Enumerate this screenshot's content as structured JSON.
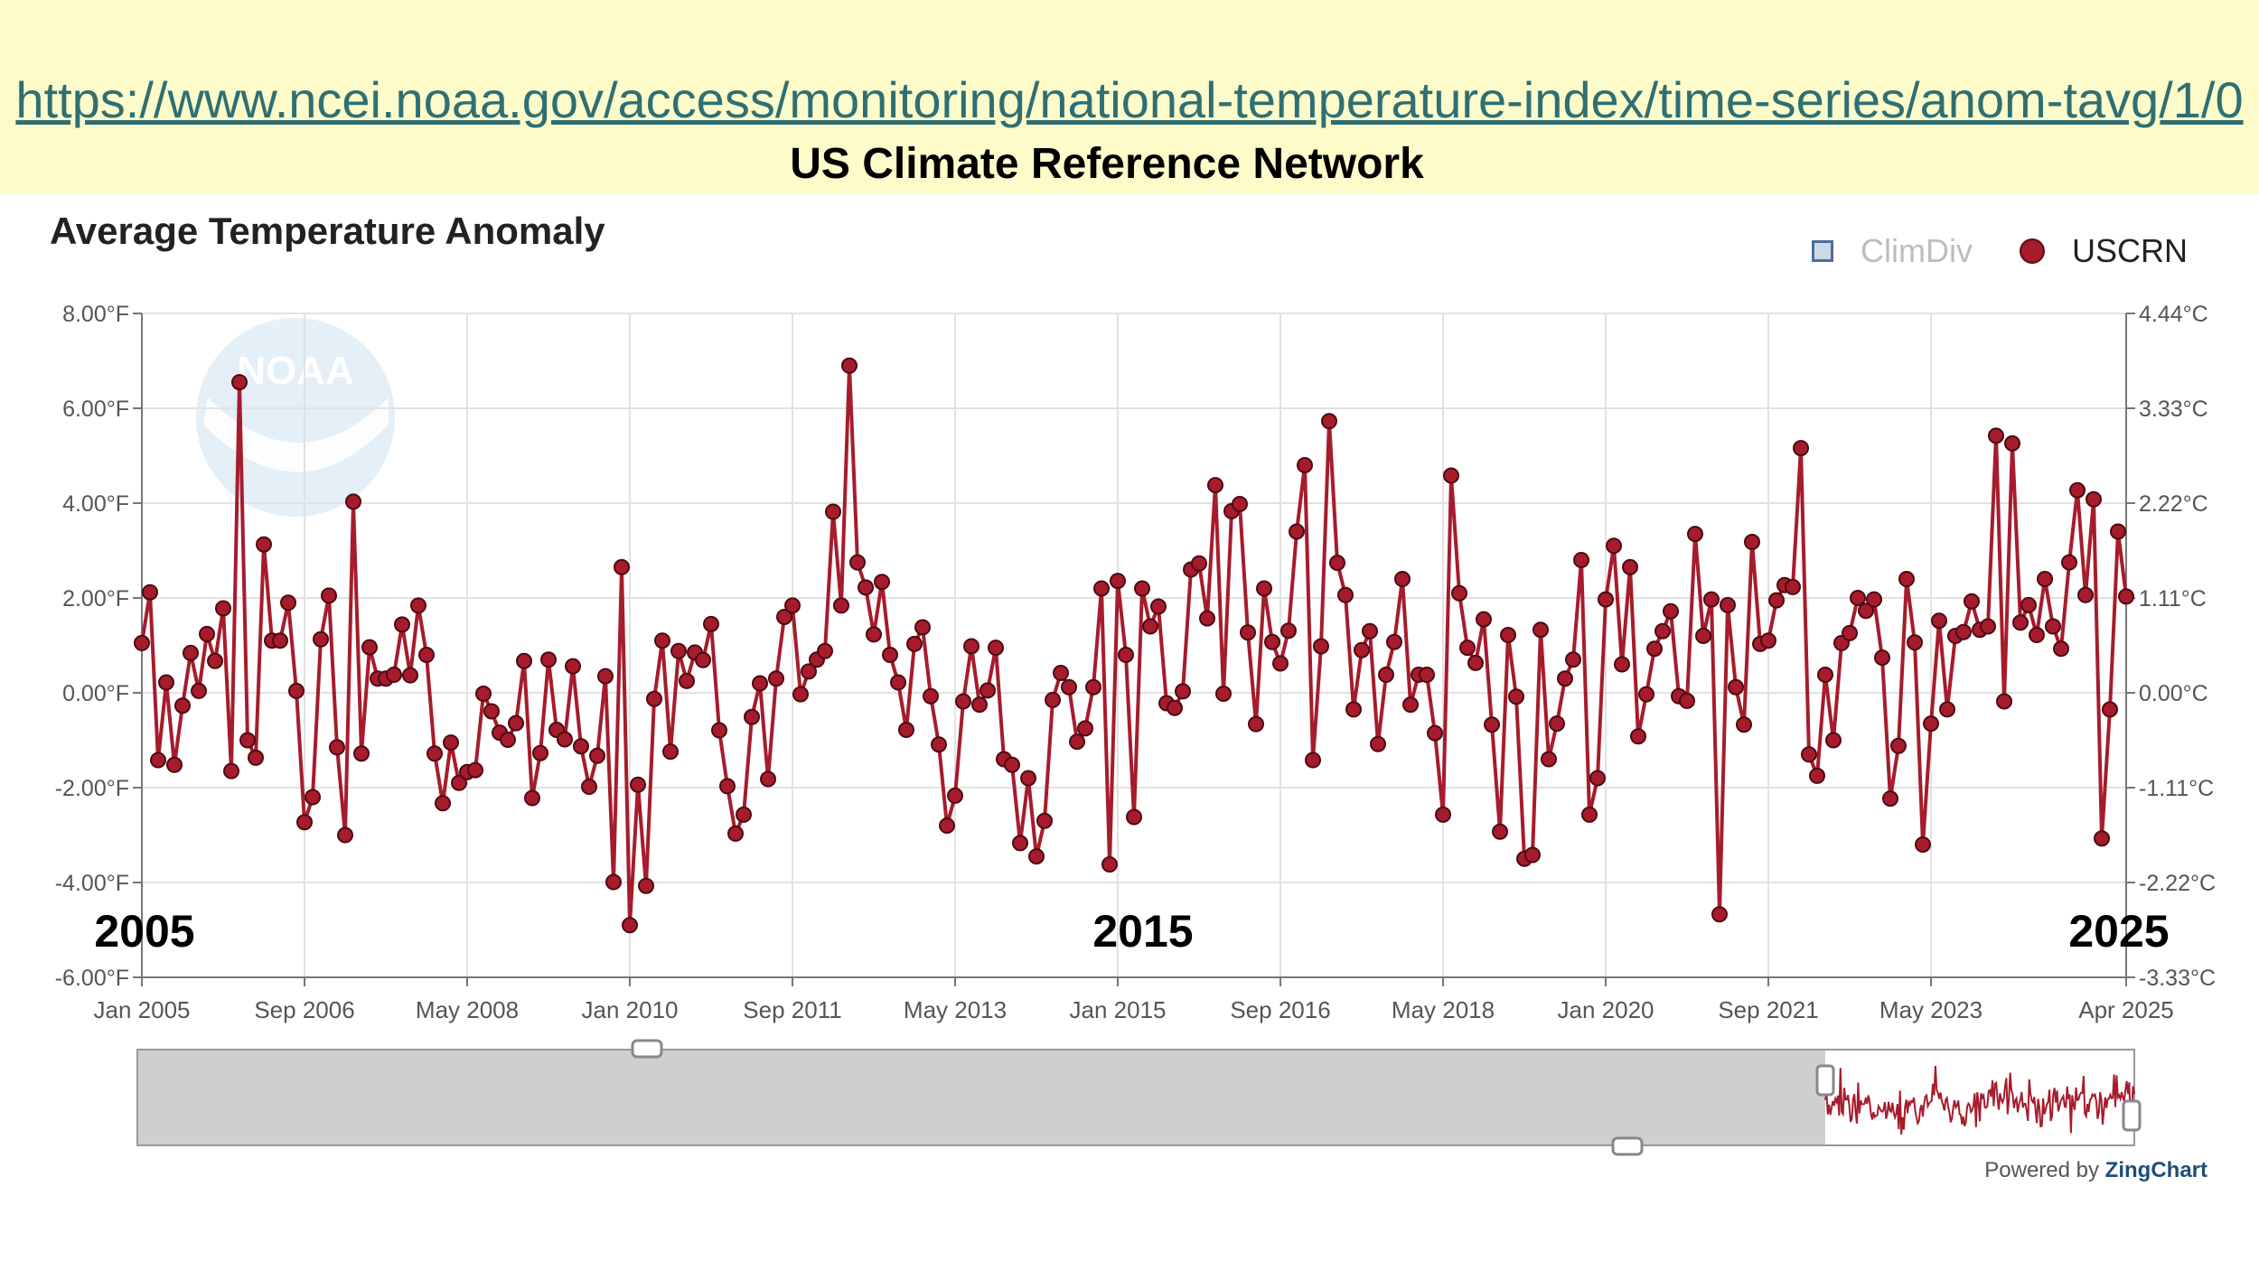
{
  "header": {
    "url": "https://www.ncei.noaa.gov/access/monitoring/national-temperature-index/time-series/anom-tavg/1/0",
    "subtitle": "US Climate Reference Network"
  },
  "watermark": {
    "text": "NOAA"
  },
  "colors": {
    "banner": "#fdfbc9",
    "series": "#a61c2c",
    "climdiv_fill": "#cbd9e8",
    "grid": "#e2e2e2",
    "navigator_fill": "#cfcfcf"
  },
  "footer": {
    "powered_prefix": "Powered by",
    "powered_brand": "ZingChart"
  },
  "chart_data": {
    "type": "line",
    "title": "Average Temperature Anomaly",
    "legend": {
      "position": "top-right",
      "items": [
        {
          "label": "ClimDiv",
          "state": "hidden"
        },
        {
          "label": "USCRN",
          "state": "visible"
        }
      ]
    },
    "x_range": [
      "2005-01",
      "2025-04"
    ],
    "x_ticks": [
      "Jan 2005",
      "Sep 2006",
      "May 2008",
      "Jan 2010",
      "Sep 2011",
      "May 2013",
      "Jan 2015",
      "Sep 2016",
      "May 2018",
      "Jan 2020",
      "Sep 2021",
      "May 2023",
      "Apr 2025"
    ],
    "y_ticks": [
      "8.00°F",
      "6.00°F",
      "4.00°F",
      "2.00°F",
      "0.00°F",
      "-2.00°F",
      "-4.00°F",
      "-6.00°F"
    ],
    "y2_ticks": [
      "4.44°C",
      "3.33°C",
      "2.22°C",
      "1.11°C",
      "0.00°C",
      "-1.11°C",
      "-2.22°C",
      "-3.33°C"
    ],
    "ylim": [
      -6,
      8
    ],
    "y2lim": [
      -3.33,
      4.44
    ],
    "grid": true,
    "annotations": [
      "2005",
      "2015",
      "2025"
    ],
    "series": [
      {
        "name": "USCRN",
        "x_start": "2005-01",
        "x_step": "1 month",
        "values": [
          1.05,
          2.12,
          -1.42,
          0.22,
          -1.52,
          -0.27,
          0.84,
          0.04,
          1.24,
          0.67,
          1.78,
          -1.65,
          6.55,
          -1.0,
          -1.37,
          3.13,
          1.1,
          1.1,
          1.9,
          0.04,
          -2.73,
          -2.2,
          1.13,
          2.05,
          -1.15,
          -3.0,
          4.03,
          -1.28,
          0.96,
          0.3,
          0.3,
          0.38,
          1.44,
          0.37,
          1.84,
          0.8,
          -1.28,
          -2.33,
          -1.05,
          -1.9,
          -1.67,
          -1.63,
          -0.02,
          -0.39,
          -0.84,
          -0.99,
          -0.64,
          0.67,
          -2.22,
          -1.27,
          0.7,
          -0.78,
          -0.98,
          0.56,
          -1.13,
          -1.98,
          -1.33,
          0.35,
          -3.99,
          2.65,
          -4.9,
          -1.94,
          -4.07,
          -0.13,
          1.1,
          -1.24,
          0.88,
          0.25,
          0.85,
          0.69,
          1.45,
          -0.79,
          -1.97,
          -2.97,
          -2.57,
          -0.51,
          0.2,
          -1.82,
          0.3,
          1.6,
          1.84,
          -0.03,
          0.45,
          0.7,
          0.88,
          3.82,
          1.84,
          6.9,
          2.75,
          2.22,
          1.23,
          2.34,
          0.8,
          0.22,
          -0.78,
          1.03,
          1.38,
          -0.07,
          -1.09,
          -2.8,
          -2.17,
          -0.18,
          0.98,
          -0.25,
          0.05,
          0.95,
          -1.4,
          -1.52,
          -3.17,
          -1.8,
          -3.45,
          -2.7,
          -0.15,
          0.42,
          0.12,
          -1.03,
          -0.75,
          0.12,
          2.2,
          -3.62,
          2.36,
          0.8,
          -2.62,
          2.2,
          1.4,
          1.82,
          -0.22,
          -0.32,
          0.03,
          2.6,
          2.73,
          1.57,
          4.38,
          -0.02,
          3.83,
          3.98,
          1.27,
          -0.66,
          2.2,
          1.07,
          0.62,
          1.31,
          3.4,
          4.8,
          -1.42,
          0.98,
          5.73,
          2.74,
          2.06,
          -0.35,
          0.9,
          1.3,
          -1.08,
          0.38,
          1.07,
          2.4,
          -0.25,
          0.38,
          0.38,
          -0.85,
          -2.57,
          4.58,
          2.1,
          0.95,
          0.63,
          1.55,
          -0.67,
          -2.93,
          1.22,
          -0.08,
          -3.5,
          -3.42,
          1.33,
          -1.4,
          -0.65,
          0.3,
          0.7,
          2.8,
          -2.57,
          -1.8,
          1.97,
          3.1,
          0.6,
          2.65,
          -0.92,
          -0.03,
          0.93,
          1.3,
          1.72,
          -0.07,
          -0.17,
          3.35,
          1.2,
          1.97,
          -4.67,
          1.85,
          0.12,
          -0.67,
          3.18,
          1.03,
          1.1,
          1.95,
          2.27,
          2.23,
          5.16,
          -1.3,
          -1.75,
          0.38,
          -1.0,
          1.05,
          1.26,
          2.0,
          1.73,
          1.97,
          0.74,
          -2.23,
          -1.12,
          2.4,
          1.06,
          -3.2,
          -0.65,
          1.52,
          -0.35,
          1.2,
          1.28,
          1.93,
          1.33,
          1.4,
          5.42,
          -0.18,
          5.26,
          1.48,
          1.85,
          1.22,
          2.4,
          1.4,
          0.93,
          2.75,
          4.27,
          2.06,
          4.08,
          -3.07,
          -0.35,
          3.4,
          2.03
        ]
      }
    ]
  }
}
